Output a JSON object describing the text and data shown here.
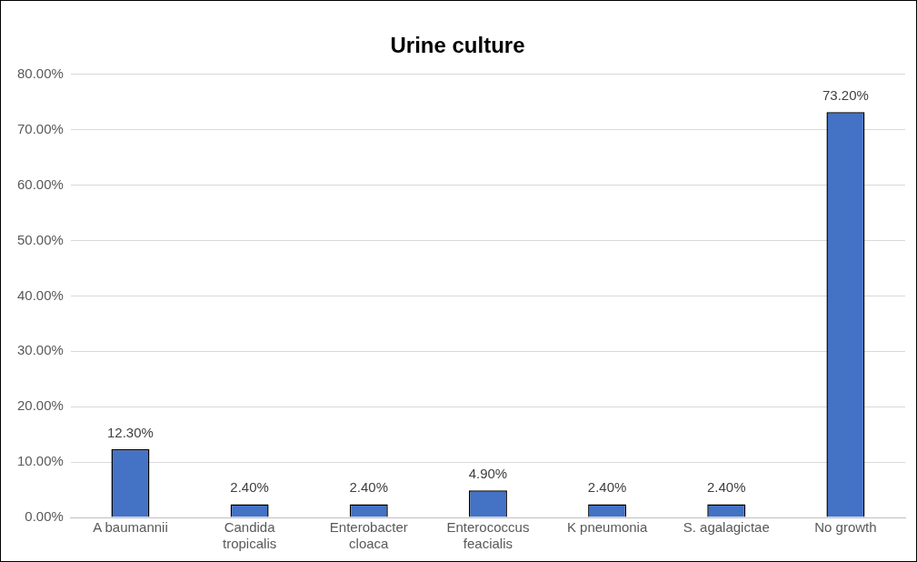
{
  "chart_data": {
    "type": "bar",
    "title": "Urine culture",
    "categories": [
      "A baumannii",
      "Candida tropicalis",
      "Enterobacter cloaca",
      "Enterococcus feacialis",
      "K pneumonia",
      "S. agalagictae",
      "No growth"
    ],
    "values": [
      12.3,
      2.4,
      2.4,
      4.9,
      2.4,
      2.4,
      73.2
    ],
    "value_labels": [
      "12.30%",
      "2.40%",
      "2.40%",
      "4.90%",
      "2.40%",
      "2.40%",
      "73.20%"
    ],
    "color": "#4472c4",
    "ylim": [
      0,
      80
    ],
    "yticks": [
      {
        "value": 0,
        "label": "0.00%"
      },
      {
        "value": 10,
        "label": "10.00%"
      },
      {
        "value": 20,
        "label": "20.00%"
      },
      {
        "value": 30,
        "label": "30.00%"
      },
      {
        "value": 40,
        "label": "40.00%"
      },
      {
        "value": 50,
        "label": "50.00%"
      },
      {
        "value": 60,
        "label": "60.00%"
      },
      {
        "value": 70,
        "label": "70.00%"
      },
      {
        "value": 80,
        "label": "80.00%"
      }
    ],
    "grid": "y",
    "legend": false
  }
}
